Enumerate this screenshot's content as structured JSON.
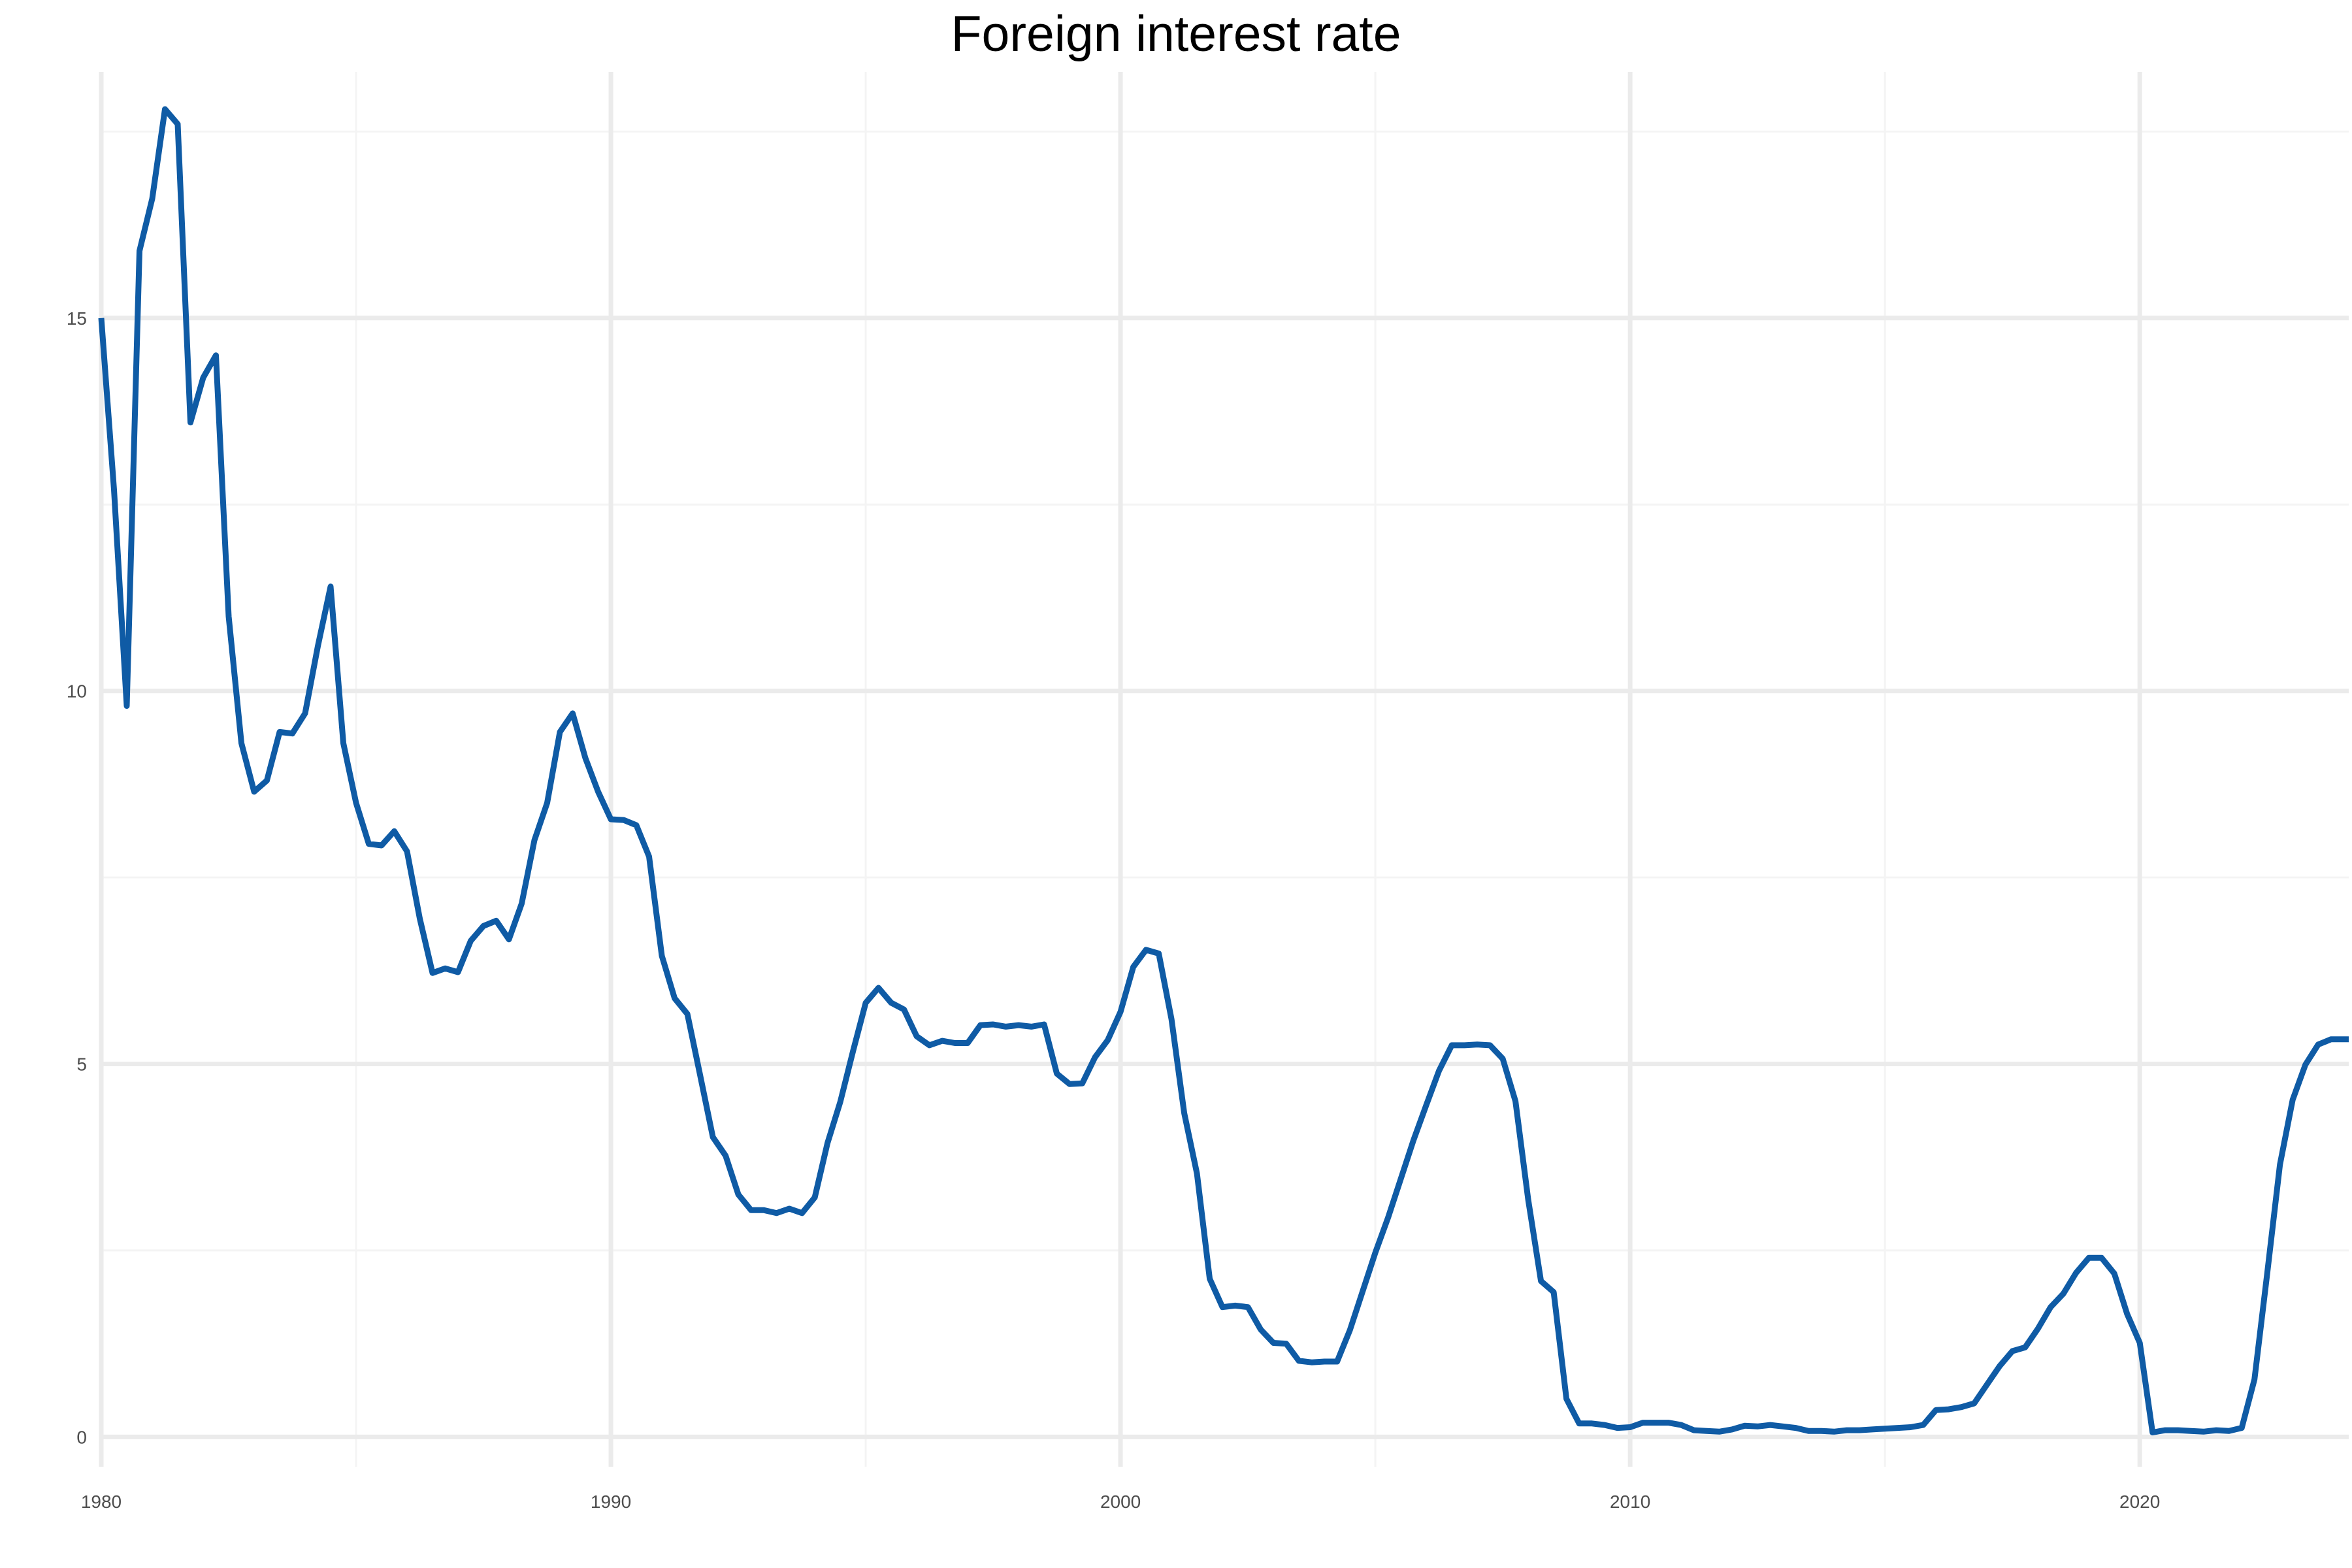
{
  "chart_data": {
    "type": "line",
    "title": "Foreign interest rate",
    "xlabel": "",
    "ylabel": "",
    "xlim": [
      1980,
      2024.1
    ],
    "ylim": [
      -0.4,
      18.3
    ],
    "x_ticks": [
      1980,
      1990,
      2000,
      2010,
      2020
    ],
    "x_tick_labels": [
      "1980",
      "1990",
      "2000",
      "2010",
      "2020"
    ],
    "x_minor_ticks": [
      1985,
      1995,
      2005,
      2015
    ],
    "y_ticks": [
      0,
      5,
      10,
      15
    ],
    "y_tick_labels": [
      "0",
      "5",
      "10",
      "15"
    ],
    "y_minor_ticks": [
      2.5,
      7.5,
      12.5,
      17.5
    ],
    "grid": true,
    "legend": "none",
    "colors": {
      "line": "#0F5BA5",
      "grid_major": "#EBEBEB",
      "grid_minor": "#F4F4F4",
      "tick_label": "#4D4D4D"
    },
    "series": [
      {
        "x": [
          1980.0,
          1980.25,
          1980.5,
          1980.75,
          1981.0,
          1981.25,
          1981.5,
          1981.75,
          1982.0,
          1982.25,
          1982.5,
          1982.75,
          1983.0,
          1983.25,
          1983.5,
          1983.75,
          1984.0,
          1984.25,
          1984.5,
          1984.75,
          1985.0,
          1985.25,
          1985.5,
          1985.75,
          1986.0,
          1986.25,
          1986.5,
          1986.75,
          1987.0,
          1987.25,
          1987.5,
          1987.75,
          1988.0,
          1988.25,
          1988.5,
          1988.75,
          1989.0,
          1989.25,
          1989.5,
          1989.75,
          1990.0,
          1990.25,
          1990.5,
          1990.75,
          1991.0,
          1991.25,
          1991.5,
          1991.75,
          1992.0,
          1992.25,
          1992.5,
          1992.75,
          1993.0,
          1993.25,
          1993.5,
          1993.75,
          1994.0,
          1994.25,
          1994.5,
          1994.75,
          1995.0,
          1995.25,
          1995.5,
          1995.75,
          1996.0,
          1996.25,
          1996.5,
          1996.75,
          1997.0,
          1997.25,
          1997.5,
          1997.75,
          1998.0,
          1998.25,
          1998.5,
          1998.75,
          1999.0,
          1999.25,
          1999.5,
          1999.75,
          2000.0,
          2000.25,
          2000.5,
          2000.75,
          2001.0,
          2001.25,
          2001.5,
          2001.75,
          2002.0,
          2002.25,
          2002.5,
          2002.75,
          2003.0,
          2003.25,
          2003.5,
          2003.75,
          2004.0,
          2004.25,
          2004.5,
          2004.75,
          2005.0,
          2005.25,
          2005.5,
          2005.75,
          2006.0,
          2006.25,
          2006.5,
          2006.75,
          2007.0,
          2007.25,
          2007.5,
          2007.75,
          2008.0,
          2008.25,
          2008.5,
          2008.75,
          2009.0,
          2009.25,
          2009.5,
          2009.75,
          2010.0,
          2010.25,
          2010.5,
          2010.75,
          2011.0,
          2011.25,
          2011.5,
          2011.75,
          2012.0,
          2012.25,
          2012.5,
          2012.75,
          2013.0,
          2013.25,
          2013.5,
          2013.75,
          2014.0,
          2014.25,
          2014.5,
          2014.75,
          2015.0,
          2015.25,
          2015.5,
          2015.75,
          2016.0,
          2016.25,
          2016.5,
          2016.75,
          2017.0,
          2017.25,
          2017.5,
          2017.75,
          2018.0,
          2018.25,
          2018.5,
          2018.75,
          2019.0,
          2019.25,
          2019.5,
          2019.75,
          2020.0,
          2020.25,
          2020.5,
          2020.75,
          2021.0,
          2021.25,
          2021.5,
          2021.75,
          2022.0,
          2022.25,
          2022.5,
          2022.75,
          2023.0,
          2023.25,
          2023.5,
          2023.75,
          2024.0,
          2024.1
        ],
        "values": [
          15.0,
          12.7,
          9.8,
          15.9,
          16.6,
          17.8,
          17.6,
          13.6,
          14.2,
          14.5,
          11.0,
          9.3,
          8.65,
          8.8,
          9.45,
          9.43,
          9.7,
          10.6,
          11.4,
          9.3,
          8.5,
          7.95,
          7.93,
          8.12,
          7.85,
          6.95,
          6.22,
          6.28,
          6.23,
          6.65,
          6.85,
          6.92,
          6.67,
          7.15,
          8.0,
          8.5,
          9.45,
          9.7,
          9.1,
          8.65,
          8.28,
          8.27,
          8.2,
          7.78,
          6.45,
          5.88,
          5.67,
          4.85,
          4.02,
          3.77,
          3.25,
          3.04,
          3.04,
          3.0,
          3.06,
          3.0,
          3.21,
          3.94,
          4.49,
          5.17,
          5.82,
          6.02,
          5.82,
          5.73,
          5.37,
          5.25,
          5.31,
          5.28,
          5.28,
          5.52,
          5.53,
          5.5,
          5.52,
          5.5,
          5.53,
          4.87,
          4.73,
          4.74,
          5.09,
          5.32,
          5.7,
          6.3,
          6.53,
          6.48,
          5.6,
          4.34,
          3.53,
          2.12,
          1.74,
          1.76,
          1.74,
          1.44,
          1.26,
          1.25,
          1.02,
          1.0,
          1.01,
          1.01,
          1.43,
          1.95,
          2.47,
          2.94,
          3.46,
          3.98,
          4.45,
          4.91,
          5.25,
          5.25,
          5.26,
          5.25,
          5.07,
          4.5,
          3.18,
          2.09,
          1.94,
          0.51,
          0.18,
          0.18,
          0.16,
          0.12,
          0.13,
          0.19,
          0.19,
          0.19,
          0.16,
          0.09,
          0.08,
          0.07,
          0.1,
          0.15,
          0.14,
          0.16,
          0.14,
          0.12,
          0.08,
          0.08,
          0.07,
          0.09,
          0.09,
          0.1,
          0.11,
          0.12,
          0.13,
          0.16,
          0.36,
          0.37,
          0.4,
          0.45,
          0.7,
          0.95,
          1.15,
          1.2,
          1.45,
          1.74,
          1.92,
          2.2,
          2.4,
          2.4,
          2.19,
          1.65,
          1.26,
          0.06,
          0.09,
          0.09,
          0.08,
          0.07,
          0.09,
          0.08,
          0.12,
          0.77,
          2.19,
          3.65,
          4.52,
          4.99,
          5.26,
          5.33,
          5.33,
          5.33
        ]
      }
    ]
  }
}
